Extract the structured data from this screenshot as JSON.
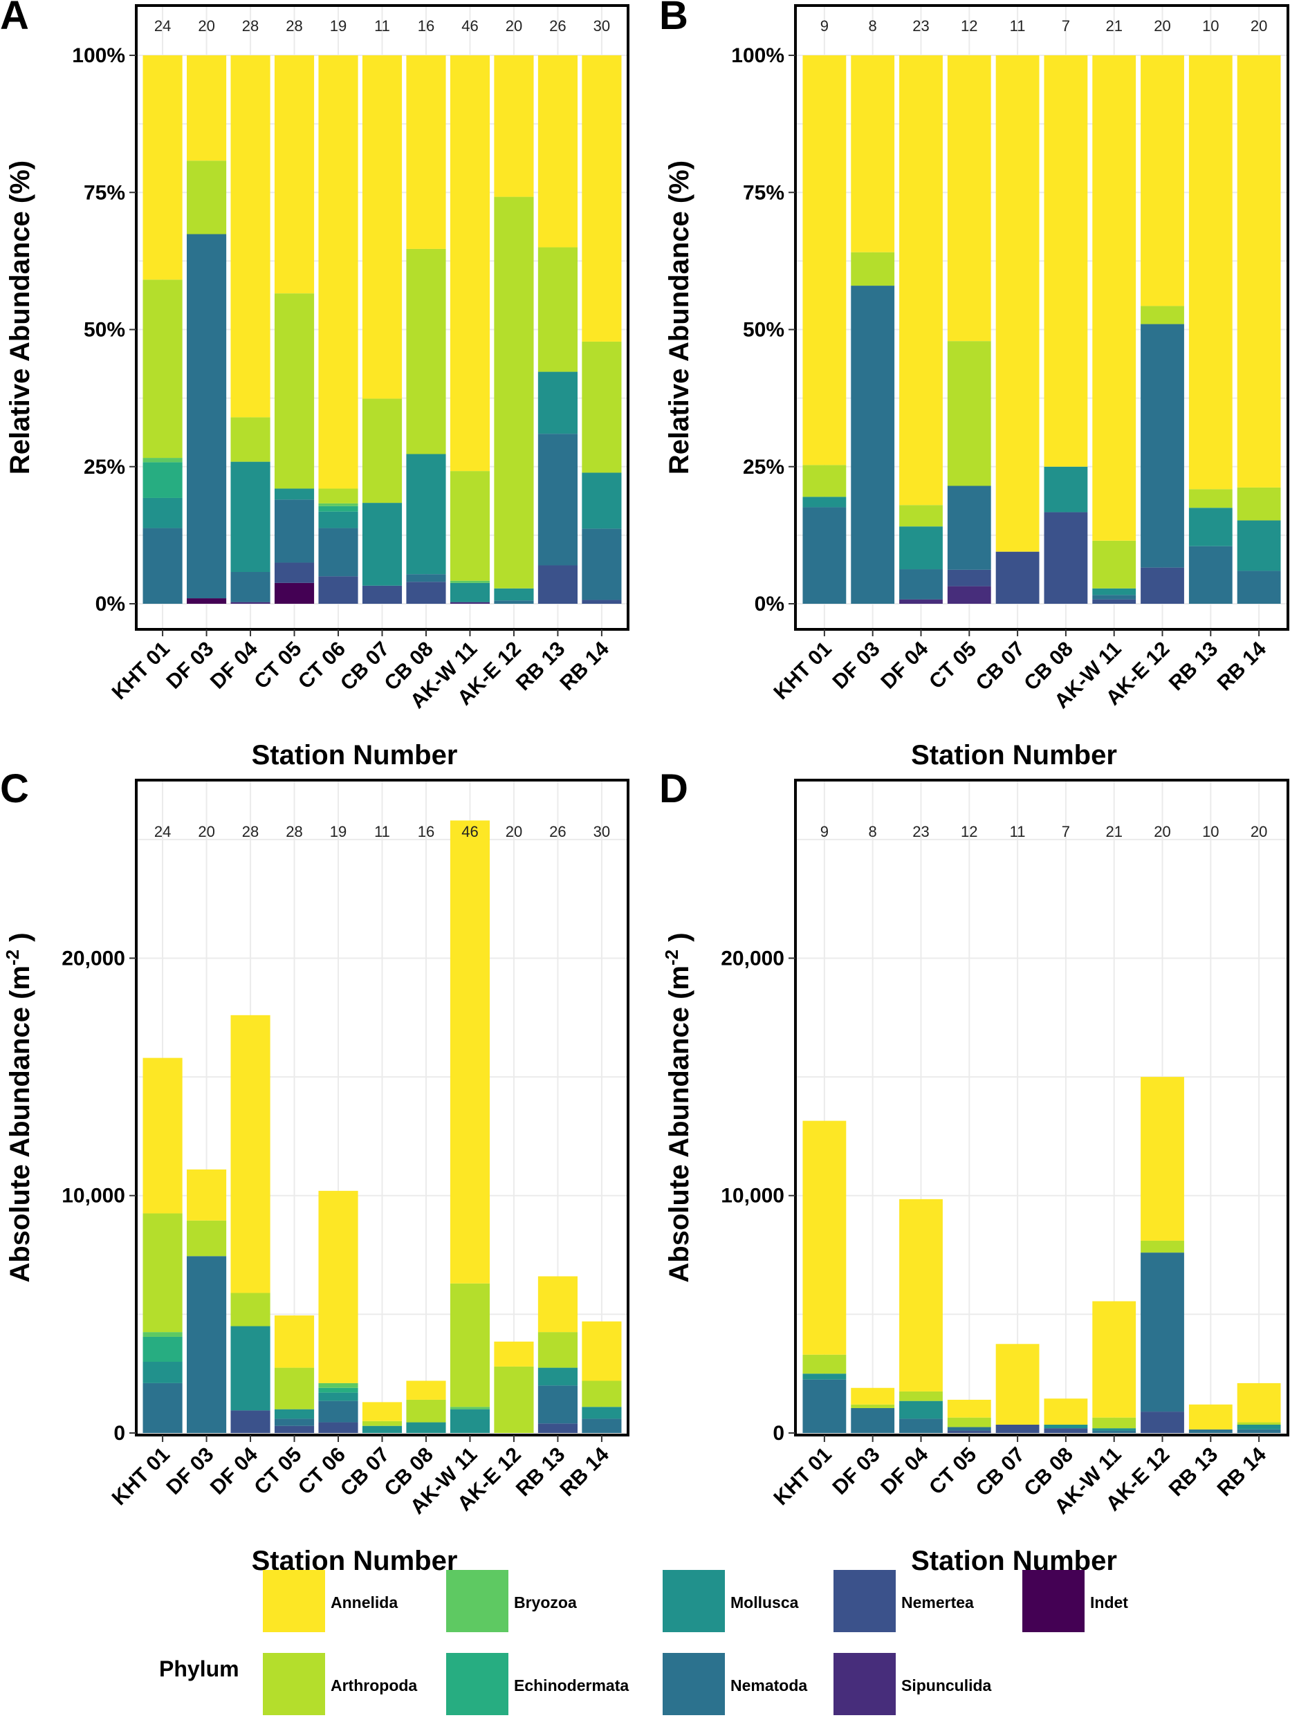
{
  "colors": {
    "Annelida": "#FDE725",
    "Arthropoda": "#B4DE2C",
    "Bryozoa": "#5EC962",
    "Echinodermata": "#27AD81",
    "Mollusca": "#21918C",
    "Nematoda": "#2C728E",
    "Nemertea": "#3B528B",
    "Sipunculida": "#472D7B",
    "Indet": "#440154"
  },
  "legend": {
    "title": "Phylum",
    "items": [
      "Annelida",
      "Bryozoa",
      "Mollusca",
      "Nemertea",
      "Indet",
      "Arthropoda",
      "Echinodermata",
      "Nematoda",
      "Sipunculida"
    ]
  },
  "chart_data": [
    {
      "panel": "A",
      "type": "bar",
      "stacked": true,
      "xlabel": "Station Number",
      "ylabel": "Relative Abundance (%)",
      "ylim": [
        0,
        100
      ],
      "yticks": [
        0,
        25,
        50,
        75,
        100
      ],
      "yticklabels": [
        "0%",
        "25%",
        "50%",
        "75%",
        "100%"
      ],
      "categories": [
        "KHT 01",
        "DF 03",
        "DF 04",
        "CT 05",
        "CT 06",
        "CB 07",
        "CB 08",
        "AK-W 11",
        "AK-E 12",
        "RB 13",
        "RB 14"
      ],
      "counts": [
        "24",
        "20",
        "28",
        "28",
        "19",
        "11",
        "16",
        "46",
        "20",
        "26",
        "30"
      ],
      "series": [
        {
          "name": "Indet",
          "values": [
            0,
            1,
            0,
            3.8,
            0,
            0,
            0,
            0,
            0,
            0,
            0
          ]
        },
        {
          "name": "Sipunculida",
          "values": [
            0,
            0,
            0.3,
            0,
            0,
            0,
            0,
            0.3,
            0,
            0,
            0
          ]
        },
        {
          "name": "Nemertea",
          "values": [
            0,
            0,
            0,
            3.7,
            5,
            3.3,
            4,
            0,
            0,
            7,
            0.7
          ]
        },
        {
          "name": "Nematoda",
          "values": [
            13.8,
            66.4,
            5.5,
            11.5,
            8.8,
            0,
            1.4,
            0,
            0.6,
            24,
            13
          ]
        },
        {
          "name": "Mollusca",
          "values": [
            5.5,
            0,
            20.1,
            2,
            3,
            15.1,
            21.9,
            3.5,
            2.2,
            11.3,
            10.2
          ]
        },
        {
          "name": "Echinodermata",
          "values": [
            6.5,
            0,
            0,
            0,
            1,
            0,
            0,
            0,
            0,
            0,
            0
          ]
        },
        {
          "name": "Bryozoa",
          "values": [
            0.8,
            0,
            0,
            0,
            0.5,
            0,
            0,
            0.4,
            0,
            0,
            0
          ]
        },
        {
          "name": "Arthropoda",
          "values": [
            32.5,
            13.4,
            8.1,
            35.6,
            2.7,
            19,
            37.4,
            20,
            71.4,
            22.7,
            23.9
          ]
        },
        {
          "name": "Annelida",
          "values": [
            40.9,
            19.2,
            66,
            43.4,
            79,
            62.6,
            35.3,
            75.8,
            25.8,
            35,
            52.2
          ]
        }
      ]
    },
    {
      "panel": "B",
      "type": "bar",
      "stacked": true,
      "xlabel": "Station Number",
      "ylabel": "Relative Abundance (%)",
      "ylim": [
        0,
        100
      ],
      "yticks": [
        0,
        25,
        50,
        75,
        100
      ],
      "yticklabels": [
        "0%",
        "25%",
        "50%",
        "75%",
        "100%"
      ],
      "categories": [
        "KHT 01",
        "DF 03",
        "DF 04",
        "CT 05",
        "CB 07",
        "CB 08",
        "AK-W 11",
        "AK-E 12",
        "RB 13",
        "RB 14"
      ],
      "counts": [
        "9",
        "8",
        "23",
        "12",
        "11",
        "7",
        "21",
        "20",
        "10",
        "20"
      ],
      "series": [
        {
          "name": "Indet",
          "values": [
            0,
            0,
            0,
            0,
            0,
            0,
            0,
            0,
            0,
            0
          ]
        },
        {
          "name": "Sipunculida",
          "values": [
            0,
            0,
            0.8,
            3.2,
            0,
            0,
            0,
            0,
            0,
            0
          ]
        },
        {
          "name": "Nemertea",
          "values": [
            0,
            0,
            0,
            3,
            9.5,
            16.7,
            0.8,
            6.6,
            0,
            0
          ]
        },
        {
          "name": "Nematoda",
          "values": [
            17.6,
            58,
            5.5,
            15.3,
            0,
            0,
            0.8,
            44.4,
            10.5,
            6
          ]
        },
        {
          "name": "Mollusca",
          "values": [
            1.9,
            0,
            7.8,
            0,
            0,
            8.3,
            1.2,
            0,
            7,
            9.2
          ]
        },
        {
          "name": "Echinodermata",
          "values": [
            0,
            0,
            0,
            0,
            0,
            0,
            0,
            0,
            0,
            0
          ]
        },
        {
          "name": "Bryozoa",
          "values": [
            0,
            0,
            0,
            0,
            0,
            0,
            0,
            0,
            0,
            0
          ]
        },
        {
          "name": "Arthropoda",
          "values": [
            5.8,
            6.1,
            3.9,
            26.4,
            0,
            0,
            8.7,
            3.3,
            3.4,
            6
          ]
        },
        {
          "name": "Annelida",
          "values": [
            74.7,
            35.9,
            82,
            52.1,
            90.5,
            75,
            88.5,
            45.7,
            79.1,
            78.8
          ]
        }
      ]
    },
    {
      "panel": "C",
      "type": "bar",
      "stacked": true,
      "xlabel": "Station Number",
      "ylabel": "Absolute Abundance (m",
      "ylabel_sup": "-2",
      "ylabel_end": ")",
      "ylim": [
        0,
        27500
      ],
      "yticks": [
        0,
        10000,
        20000
      ],
      "yticklabels": [
        "0",
        "10,000",
        "20,000"
      ],
      "categories": [
        "KHT 01",
        "DF 03",
        "DF 04",
        "CT 05",
        "CT 06",
        "CB 07",
        "CB 08",
        "AK-W 11",
        "AK-E 12",
        "RB 13",
        "RB 14"
      ],
      "counts": [
        "24",
        "20",
        "28",
        "28",
        "19",
        "11",
        "16",
        "46",
        "20",
        "26",
        "30"
      ],
      "series": [
        {
          "name": "Indet",
          "values": [
            0,
            0,
            0,
            0,
            0,
            0,
            0,
            0,
            0,
            0,
            0
          ]
        },
        {
          "name": "Sipunculida",
          "values": [
            0,
            0,
            0,
            0,
            0,
            0,
            0,
            0,
            0,
            0,
            0
          ]
        },
        {
          "name": "Nemertea",
          "values": [
            0,
            0,
            950,
            300,
            450,
            0,
            0,
            0,
            0,
            400,
            0
          ]
        },
        {
          "name": "Nematoda",
          "values": [
            2100,
            7450,
            0,
            300,
            900,
            0,
            0,
            0,
            0,
            1600,
            600
          ]
        },
        {
          "name": "Mollusca",
          "values": [
            900,
            0,
            3550,
            400,
            350,
            300,
            450,
            1000,
            0,
            750,
            500
          ]
        },
        {
          "name": "Echinodermata",
          "values": [
            1050,
            0,
            0,
            0,
            200,
            0,
            0,
            0,
            0,
            0,
            0
          ]
        },
        {
          "name": "Bryozoa",
          "values": [
            200,
            0,
            0,
            0,
            200,
            0,
            0,
            100,
            0,
            0,
            0
          ]
        },
        {
          "name": "Arthropoda",
          "values": [
            5000,
            1500,
            1400,
            1750,
            0,
            200,
            950,
            5200,
            2800,
            1500,
            1100
          ]
        },
        {
          "name": "Annelida",
          "values": [
            6550,
            2150,
            11700,
            2200,
            8100,
            800,
            800,
            19500,
            1050,
            2350,
            2500
          ]
        }
      ]
    },
    {
      "panel": "D",
      "type": "bar",
      "stacked": true,
      "xlabel": "Station Number",
      "ylabel": "Absolute Abundance (m",
      "ylabel_sup": "-2",
      "ylabel_end": ")",
      "ylim": [
        0,
        27500
      ],
      "yticks": [
        0,
        10000,
        20000
      ],
      "yticklabels": [
        "0",
        "10,000",
        "20,000"
      ],
      "categories": [
        "KHT 01",
        "DF 03",
        "DF 04",
        "CT 05",
        "CB 07",
        "CB 08",
        "AK-W 11",
        "AK-E 12",
        "RB 13",
        "RB 14"
      ],
      "counts": [
        "9",
        "8",
        "23",
        "12",
        "11",
        "7",
        "21",
        "20",
        "10",
        "20"
      ],
      "series": [
        {
          "name": "Indet",
          "values": [
            0,
            0,
            0,
            0,
            0,
            0,
            0,
            0,
            0,
            0
          ]
        },
        {
          "name": "Sipunculida",
          "values": [
            0,
            0,
            0,
            0,
            0,
            0,
            0,
            0,
            0,
            0
          ]
        },
        {
          "name": "Nemertea",
          "values": [
            0,
            0,
            0,
            100,
            350,
            200,
            0,
            900,
            0,
            0
          ]
        },
        {
          "name": "Nematoda",
          "values": [
            2250,
            1050,
            600,
            150,
            0,
            0,
            100,
            6700,
            150,
            150
          ]
        },
        {
          "name": "Mollusca",
          "values": [
            250,
            0,
            750,
            0,
            0,
            150,
            100,
            0,
            0,
            200
          ]
        },
        {
          "name": "Echinodermata",
          "values": [
            0,
            0,
            0,
            0,
            0,
            0,
            0,
            0,
            0,
            0
          ]
        },
        {
          "name": "Bryozoa",
          "values": [
            0,
            0,
            0,
            0,
            0,
            0,
            0,
            0,
            0,
            0
          ]
        },
        {
          "name": "Arthropoda",
          "values": [
            800,
            150,
            400,
            400,
            0,
            0,
            450,
            500,
            0,
            100
          ]
        },
        {
          "name": "Annelida",
          "values": [
            9850,
            700,
            8100,
            750,
            3400,
            1100,
            4900,
            6900,
            1050,
            1650
          ]
        }
      ]
    }
  ]
}
